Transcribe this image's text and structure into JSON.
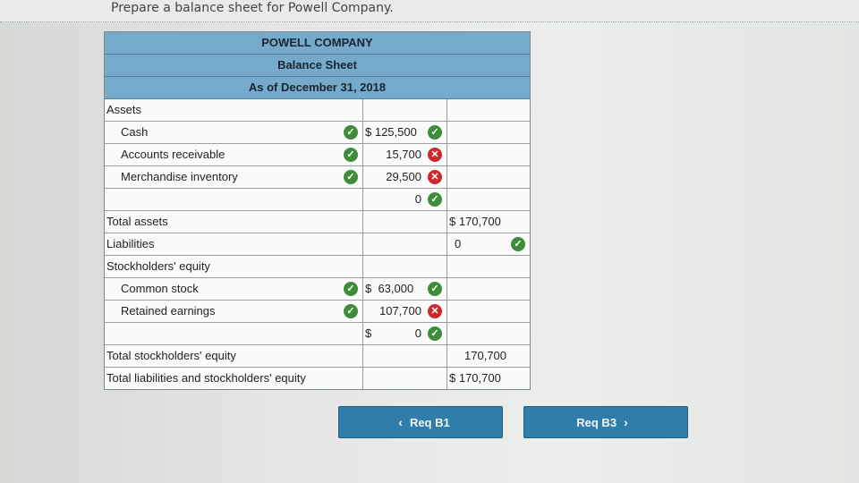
{
  "instruction": "Prepare a balance sheet for Powell Company.",
  "header": {
    "company": "POWELL COMPANY",
    "statement": "Balance Sheet",
    "date": "As of December 31, 2018"
  },
  "rows": {
    "assets": {
      "label": "Assets"
    },
    "cash": {
      "label": "Cash",
      "amount": "$ 125,500"
    },
    "accounts_receivable": {
      "label": "Accounts receivable",
      "amount": "15,700"
    },
    "merchandise_inventory": {
      "label": "Merchandise inventory",
      "amount": "29,500"
    },
    "blank_asset": {
      "amount": "0"
    },
    "total_assets": {
      "label": "Total assets",
      "total": "$ 170,700"
    },
    "liabilities": {
      "label": "Liabilities",
      "total": "0"
    },
    "stockholders_equity": {
      "label": "Stockholders' equity"
    },
    "common_stock": {
      "label": "Common stock",
      "amount": "$  63,000"
    },
    "retained_earnings": {
      "label": "Retained earnings",
      "amount": "107,700"
    },
    "blank_equity": {
      "dollar": "$",
      "amount": "0"
    },
    "total_stockholders_equity": {
      "label": "Total stockholders' equity",
      "total": "170,700"
    },
    "total_liabilities_equity": {
      "label": "Total liabilities and stockholders' equity",
      "total": "$ 170,700"
    }
  },
  "buttons": {
    "prev": {
      "label": "Req B1",
      "icon": "chevron-left-icon"
    },
    "next": {
      "label": "Req B3",
      "icon": "chevron-right-icon"
    }
  },
  "colors": {
    "header_bg": "#75aacb",
    "check": "#3f8c3a",
    "cross": "#cc2a2a",
    "button": "#2e7dab"
  }
}
